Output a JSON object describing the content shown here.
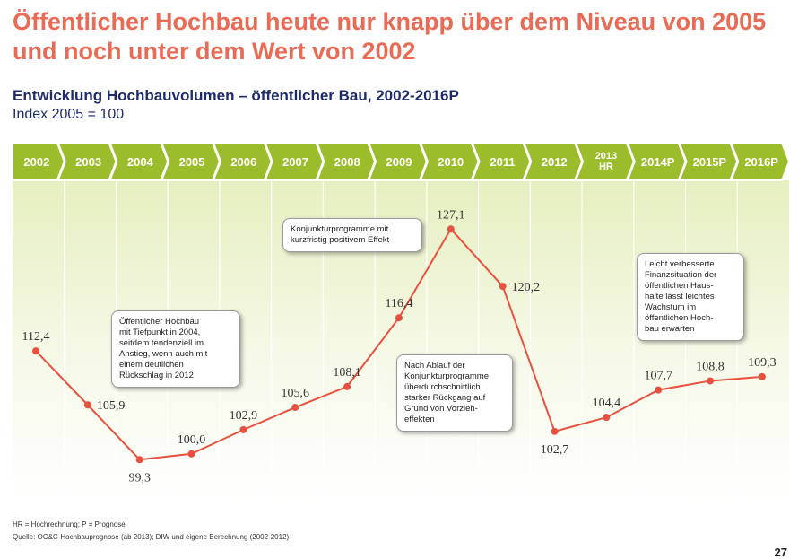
{
  "header": {
    "title": "Öffentlicher Hochbau heute nur knapp über dem Niveau von 2005 und noch unter dem Wert von 2002",
    "subtitle": "Entwicklung Hochbauvolumen – öffentlicher Bau, 2002-2016P",
    "index_note": "Index 2005 = 100"
  },
  "chart_data": {
    "type": "line",
    "categories": [
      "2002",
      "2003",
      "2004",
      "2005",
      "2006",
      "2007",
      "2008",
      "2009",
      "2010",
      "2011",
      "2012",
      "2013 HR",
      "2014P",
      "2015P",
      "2016P"
    ],
    "year_labels": [
      [
        "2002"
      ],
      [
        "2003"
      ],
      [
        "2004"
      ],
      [
        "2005"
      ],
      [
        "2006"
      ],
      [
        "2007"
      ],
      [
        "2008"
      ],
      [
        "2009"
      ],
      [
        "2010"
      ],
      [
        "2011"
      ],
      [
        "2012"
      ],
      [
        "2013",
        "HR"
      ],
      [
        "2014P"
      ],
      [
        "2015P"
      ],
      [
        "2016P"
      ]
    ],
    "values": [
      112.4,
      105.9,
      99.3,
      100.0,
      102.9,
      105.6,
      108.1,
      116.4,
      127.1,
      120.2,
      102.7,
      104.4,
      107.7,
      108.8,
      109.3
    ],
    "value_labels": [
      "112,4",
      "105,9",
      "99,3",
      "100,0",
      "102,9",
      "105,6",
      "108,1",
      "116,4",
      "127,1",
      "120,2",
      "102,7",
      "104,4",
      "107,7",
      "108,8",
      "109,3"
    ],
    "label_position": [
      "above",
      "right",
      "below",
      "above",
      "above",
      "above",
      "above",
      "above",
      "above",
      "right",
      "below",
      "above",
      "above",
      "above",
      "above"
    ],
    "ylim": [
      95,
      132
    ],
    "colors": {
      "line": "#e8513f",
      "band": "#9cbd2b",
      "band_text": "#ffffff",
      "bg_top": "#eaf2c9",
      "title": "#e96b55",
      "subtitle": "#1d2a6b"
    },
    "grid": true
  },
  "callouts": [
    {
      "text": "Öffentlicher Hochbau\nmit Tiefpunkt in 2004,\nseitdem tendenziell im\nAnstieg, wenn auch mit\neinem deutlichen\nRückschlag in 2012"
    },
    {
      "text": "Konjunkturprogramme mit\nkurzfristig positivem Effekt"
    },
    {
      "text": "Nach Ablauf der\nKonjunkturprogramme\nüberdurchschnittlich\nstarker Rückgang auf\nGrund von Vorzieh-\neffekten"
    },
    {
      "text": "Leicht verbesserte\nFinanzsituation der\nöffentlichen Haus-\nhalte lässt leichtes\nWachstum im\nöffentlichen Hoch-\nbau erwarten"
    }
  ],
  "footnotes": {
    "legend": "HR = Hochrechnung; P = Prognose",
    "source": "Quelle: OC&C-Hochbauprognose (ab 2013); DIW und eigene Berechnung (2002-2012)"
  },
  "page_number": "27"
}
